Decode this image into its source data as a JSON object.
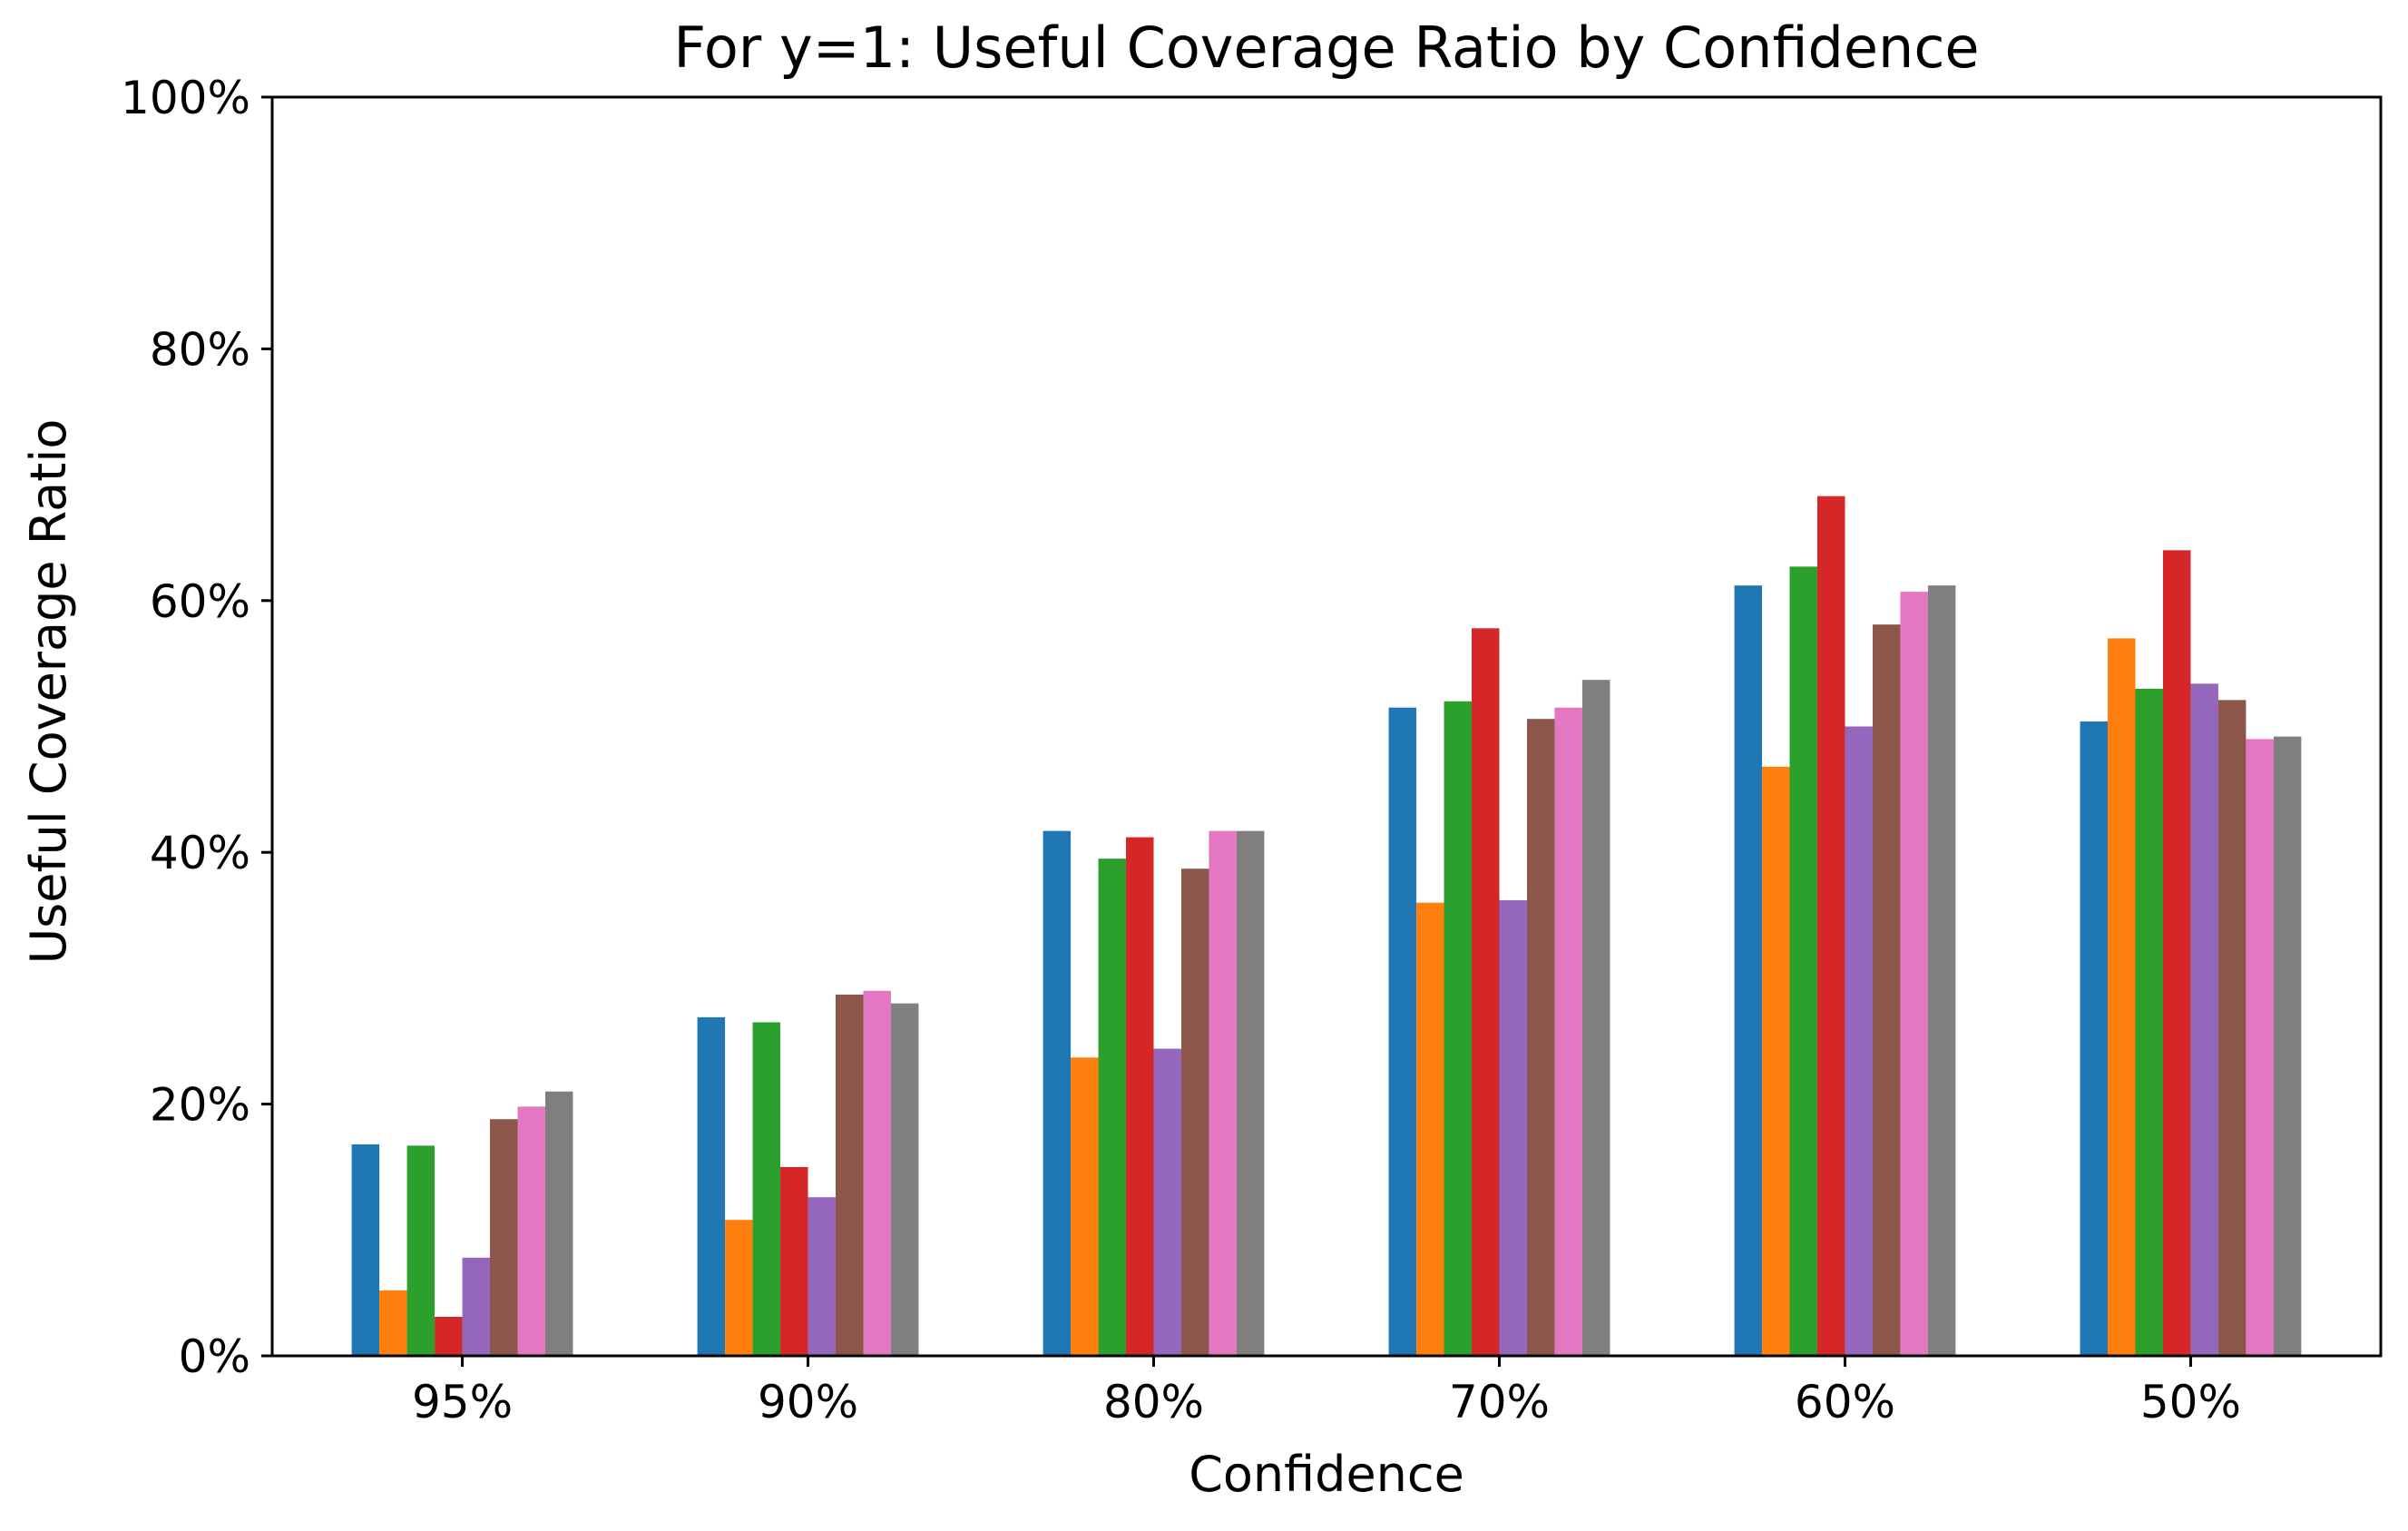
{
  "chart_data": {
    "type": "bar",
    "title": "For y=1: Useful Coverage Ratio by Confidence",
    "xlabel": "Confidence",
    "ylabel": "Useful Coverage Ratio",
    "ylim": [
      0,
      1
    ],
    "yticks": [
      0,
      0.2,
      0.4,
      0.6,
      0.8,
      1.0
    ],
    "ytick_labels": [
      "0%",
      "20%",
      "40%",
      "60%",
      "80%",
      "100%"
    ],
    "categories": [
      "95%",
      "90%",
      "80%",
      "70%",
      "60%",
      "50%"
    ],
    "grid": false,
    "legend": "none",
    "series": [
      {
        "color": "#1f77b4",
        "values": [
          0.168,
          0.269,
          0.417,
          0.515,
          0.612,
          0.504
        ]
      },
      {
        "color": "#ff7f0e",
        "values": [
          0.052,
          0.108,
          0.237,
          0.36,
          0.468,
          0.57
        ]
      },
      {
        "color": "#2ca02c",
        "values": [
          0.167,
          0.265,
          0.395,
          0.52,
          0.627,
          0.53
        ]
      },
      {
        "color": "#d62728",
        "values": [
          0.031,
          0.15,
          0.412,
          0.578,
          0.683,
          0.64
        ]
      },
      {
        "color": "#9467bd",
        "values": [
          0.078,
          0.126,
          0.244,
          0.362,
          0.5,
          0.534
        ]
      },
      {
        "color": "#8c564b",
        "values": [
          0.188,
          0.287,
          0.387,
          0.506,
          0.581,
          0.521
        ]
      },
      {
        "color": "#e377c2",
        "values": [
          0.198,
          0.29,
          0.417,
          0.515,
          0.607,
          0.49
        ]
      },
      {
        "color": "#7f7f7f",
        "values": [
          0.21,
          0.28,
          0.417,
          0.537,
          0.612,
          0.492
        ]
      }
    ]
  }
}
